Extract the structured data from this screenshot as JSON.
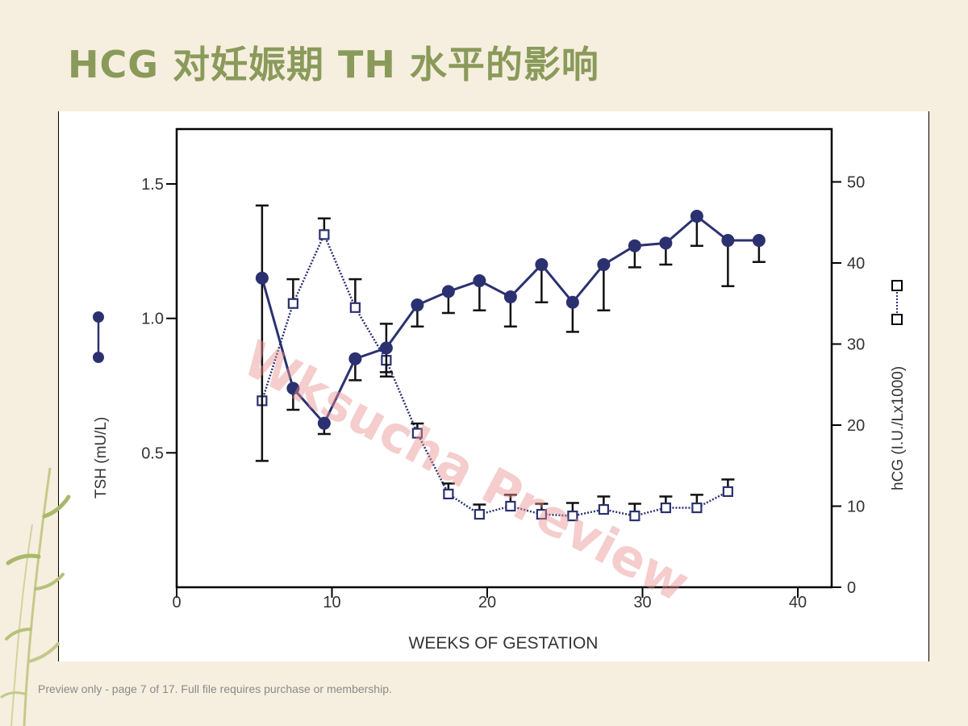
{
  "slide": {
    "title": "HCG 对妊娠期 TH 水平的影响",
    "footer": "Preview only - page 7 of 17. Full file requires purchase or membership.",
    "watermark": "Wksucha Preview"
  },
  "colors": {
    "background": "#f6efdf",
    "title": "#8a9a5a",
    "series": "#2b3170",
    "watermark": "#e89090"
  },
  "chart_data": {
    "type": "line",
    "title": "",
    "xlabel": "WEEKS OF GESTATION",
    "ylabel_left": "TSH (mU/L)",
    "ylabel_right": "hCG (I.U./Lx1000)",
    "xlim": [
      0,
      42
    ],
    "ylim_left": [
      0,
      1.7
    ],
    "ylim_right": [
      0,
      56
    ],
    "x_ticks": [
      "0",
      "10",
      "20",
      "30",
      "40"
    ],
    "y_left_ticks": [
      "0.5",
      "1.0",
      "1.5"
    ],
    "y_right_ticks": [
      "0",
      "10",
      "20",
      "30",
      "40",
      "50"
    ],
    "series": [
      {
        "name": "TSH",
        "axis": "left",
        "marker": "filled-circle",
        "line": "solid",
        "x": [
          5.5,
          7.5,
          9.5,
          11.5,
          13.5,
          15.5,
          17.5,
          19.5,
          21.5,
          23.5,
          25.5,
          27.5,
          29.5,
          31.5,
          33.5,
          35.5,
          37.5
        ],
        "y": [
          1.15,
          0.74,
          0.61,
          0.85,
          0.89,
          1.05,
          1.1,
          1.14,
          1.08,
          1.2,
          1.06,
          1.2,
          1.27,
          1.28,
          1.38,
          1.29,
          1.29
        ],
        "err_upper": [
          1.42,
          null,
          null,
          null,
          0.98,
          null,
          null,
          null,
          null,
          null,
          null,
          null,
          null,
          null,
          null,
          null,
          null
        ],
        "err_lower": [
          0.47,
          0.66,
          0.57,
          0.77,
          0.8,
          0.97,
          1.02,
          1.03,
          0.97,
          1.06,
          0.95,
          1.03,
          1.19,
          1.2,
          1.27,
          1.12,
          1.21
        ]
      },
      {
        "name": "hCG",
        "axis": "right",
        "marker": "open-square",
        "line": "dotted",
        "x": [
          5.5,
          7.5,
          9.5,
          11.5,
          13.5,
          15.5,
          17.5,
          19.5,
          21.5,
          23.5,
          25.5,
          27.5,
          29.5,
          31.5,
          33.5,
          35.5
        ],
        "y": [
          23,
          35,
          43.5,
          34.5,
          28,
          19,
          11.5,
          9,
          10,
          9,
          8.8,
          9.6,
          8.8,
          9.8,
          9.8,
          11.8
        ],
        "err_upper": [
          null,
          38,
          45.5,
          38,
          null,
          20.2,
          12.8,
          10.2,
          11.4,
          10.3,
          10.4,
          11.2,
          10.3,
          11.2,
          11.4,
          13.3
        ],
        "err_lower": [
          null,
          null,
          null,
          null,
          26,
          null,
          null,
          null,
          null,
          null,
          null,
          null,
          null,
          null,
          null,
          null
        ]
      }
    ]
  }
}
